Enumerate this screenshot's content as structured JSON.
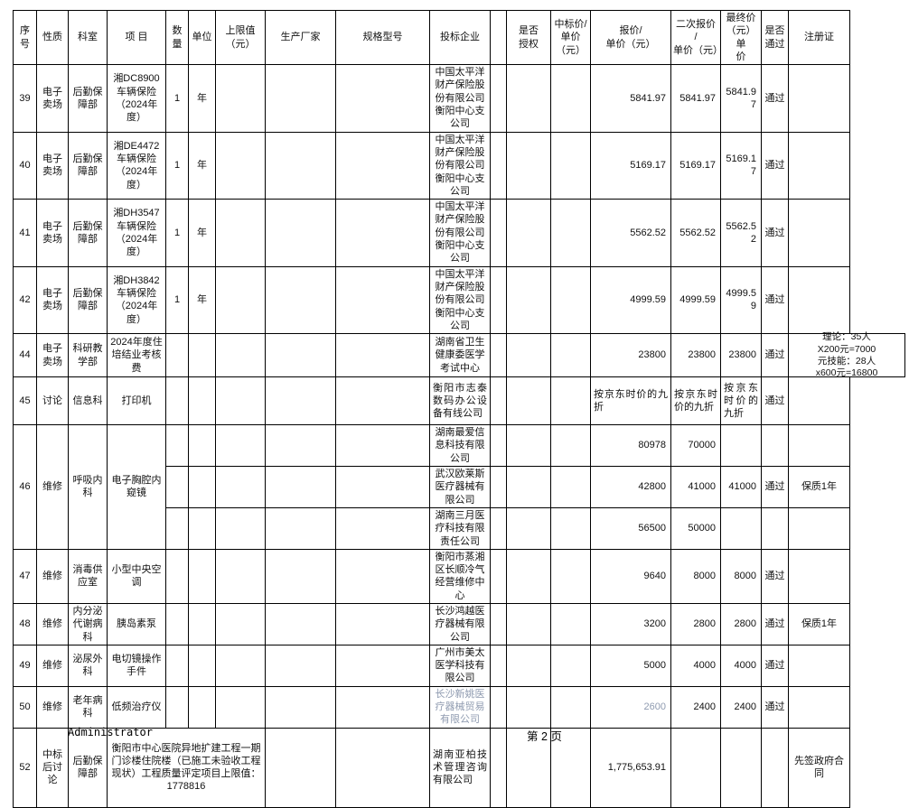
{
  "page": {
    "footer_user": "Administrator",
    "footer_page": "第 2 页"
  },
  "colors": {
    "muted_text": "#8f9bb0",
    "border": "#000000",
    "text": "#111111"
  },
  "table": {
    "headers": [
      "序号",
      "性质",
      "科室",
      "项  目",
      "数量",
      "单位",
      "上限值\n（元）",
      "生产厂家",
      "规格型号",
      "投标企业",
      "",
      "是否\n授权",
      "中标价/\n单价（元）",
      "报价/\n单价（元）",
      "二次报价\n/\n单价（元）",
      "最终价\n（元）单\n价",
      "是否\n通过",
      "注册证"
    ],
    "rows": [
      {
        "no": "39",
        "nature": "电子卖场",
        "dept": "后勤保障部",
        "project": "湘DC8900车辆保险（2024年度）",
        "bidders": [
          {
            "qty": "1",
            "unit": "年",
            "limit": "",
            "maker": "",
            "spec": "",
            "name": "中国太平洋财产保险股份有限公司衡阳中心支公司",
            "auth": "",
            "award": "",
            "quote": "5841.97",
            "quote2": "5841.97",
            "final": "5841.97",
            "pass": "通过",
            "cert": ""
          }
        ]
      },
      {
        "no": "40",
        "nature": "电子卖场",
        "dept": "后勤保障部",
        "project": "湘DE4472车辆保险（2024年度）",
        "bidders": [
          {
            "qty": "1",
            "unit": "年",
            "limit": "",
            "maker": "",
            "spec": "",
            "name": "中国太平洋财产保险股份有限公司衡阳中心支公司",
            "auth": "",
            "award": "",
            "quote": "5169.17",
            "quote2": "5169.17",
            "final": "5169.17",
            "pass": "通过",
            "cert": ""
          }
        ]
      },
      {
        "no": "41",
        "nature": "电子卖场",
        "dept": "后勤保障部",
        "project": "湘DH3547车辆保险（2024年度）",
        "bidders": [
          {
            "qty": "1",
            "unit": "年",
            "limit": "",
            "maker": "",
            "spec": "",
            "name": "中国太平洋财产保险股份有限公司衡阳中心支公司",
            "auth": "",
            "award": "",
            "quote": "5562.52",
            "quote2": "5562.52",
            "final": "5562.52",
            "pass": "通过",
            "cert": ""
          }
        ]
      },
      {
        "no": "42",
        "nature": "电子卖场",
        "dept": "后勤保障部",
        "project": "湘DH3842车辆保险（2024年度）",
        "bidders": [
          {
            "qty": "1",
            "unit": "年",
            "limit": "",
            "maker": "",
            "spec": "",
            "name": "中国太平洋财产保险股份有限公司衡阳中心支公司",
            "auth": "",
            "award": "",
            "quote": "4999.59",
            "quote2": "4999.59",
            "final": "4999.59",
            "pass": "通过",
            "cert": ""
          }
        ]
      },
      {
        "no": "44",
        "nature": "电子卖场",
        "dept": "科研教学部",
        "project": "2024年度住培结业考核费",
        "bidders": [
          {
            "qty": "",
            "unit": "",
            "limit": "",
            "maker": "",
            "spec": "",
            "name": "湖南省卫生健康委医学考试中心",
            "auth": "",
            "award": "",
            "quote": "23800",
            "quote2": "23800",
            "final": "23800",
            "pass": "通过",
            "cert": "理论：35人\nX200元=7000\n元技能：28人\nx600元=16800"
          }
        ]
      },
      {
        "no": "45",
        "nature": "讨论",
        "dept": "信息科",
        "project": "打印机",
        "bidders": [
          {
            "qty": "",
            "unit": "",
            "limit": "",
            "maker": "",
            "spec": "",
            "name": "衡阳市志泰数码办公设备有线公司",
            "auth": "",
            "award": "",
            "quote": "按京东时价的九折",
            "quote2": "按京东时价的九折",
            "final": "按京东时价的九折",
            "pass": "通过",
            "cert": ""
          }
        ]
      },
      {
        "no": "46",
        "nature": "维修",
        "dept": "呼吸内科",
        "project": "电子胸腔内窥镜",
        "bidders": [
          {
            "qty": "",
            "unit": "",
            "limit": "",
            "maker": "",
            "spec": "",
            "name": "湖南最爱信息科技有限公司",
            "auth": "",
            "award": "",
            "quote": "80978",
            "quote2": "70000",
            "final": "",
            "pass": "",
            "cert": ""
          },
          {
            "qty": "",
            "unit": "",
            "limit": "",
            "maker": "",
            "spec": "",
            "name": "武汉欧莱斯医疗器械有限公司",
            "auth": "",
            "award": "",
            "quote": "42800",
            "quote2": "41000",
            "final": "41000",
            "pass": "通过",
            "cert": "保质1年"
          },
          {
            "qty": "",
            "unit": "",
            "limit": "",
            "maker": "",
            "spec": "",
            "name": "湖南三月医疗科技有限责任公司",
            "auth": "",
            "award": "",
            "quote": "56500",
            "quote2": "50000",
            "final": "",
            "pass": "",
            "cert": ""
          }
        ]
      },
      {
        "no": "47",
        "nature": "维修",
        "dept": "消毒供应室",
        "project": "小型中央空调",
        "bidders": [
          {
            "qty": "",
            "unit": "",
            "limit": "",
            "maker": "",
            "spec": "",
            "name": "衡阳市蒸湘区长顺冷气经营维修中心",
            "auth": "",
            "award": "",
            "quote": "9640",
            "quote2": "8000",
            "final": "8000",
            "pass": "通过",
            "cert": ""
          }
        ]
      },
      {
        "no": "48",
        "nature": "维修",
        "dept": "内分泌代谢病科",
        "project": "胰岛素泵",
        "bidders": [
          {
            "qty": "",
            "unit": "",
            "limit": "",
            "maker": "",
            "spec": "",
            "name": "长沙鸿越医疗器械有限公司",
            "auth": "",
            "award": "",
            "quote": "3200",
            "quote2": "2800",
            "final": "2800",
            "pass": "通过",
            "cert": "保质1年"
          }
        ]
      },
      {
        "no": "49",
        "nature": "维修",
        "dept": "泌尿外科",
        "project": "电切镜操作手件",
        "bidders": [
          {
            "qty": "",
            "unit": "",
            "limit": "",
            "maker": "",
            "spec": "",
            "name": "广州市美太医学科技有限公司",
            "auth": "",
            "award": "",
            "quote": "5000",
            "quote2": "4000",
            "final": "4000",
            "pass": "通过",
            "cert": ""
          }
        ]
      },
      {
        "no": "50",
        "nature": "维修",
        "dept": "老年病科",
        "project": "低频治疗仪",
        "bidders": [
          {
            "qty": "",
            "unit": "",
            "limit": "",
            "maker": "",
            "spec": "",
            "name": "长沙新姚医疗器械贸易有限公司",
            "muted": true,
            "auth": "",
            "award": "",
            "quote": "2600",
            "quote2": "2400",
            "final": "2400",
            "pass": "通过",
            "cert": ""
          }
        ]
      },
      {
        "no": "52",
        "nature": "中标后讨论",
        "dept": "后勤保障部",
        "project": "衡阳市中心医院异地扩建工程一期门诊楼住院楼（已施工未验收工程现状）工程质量评定项目上限值：1778816",
        "bidders": [
          {
            "maker": "",
            "spec": "",
            "name": "湖南亚柏技术管理咨询有限公司",
            "auth": "",
            "award": "",
            "quote": "1,775,653.91",
            "quote2": "",
            "final": "",
            "pass": "",
            "cert": "先签政府合同"
          }
        ]
      }
    ]
  }
}
